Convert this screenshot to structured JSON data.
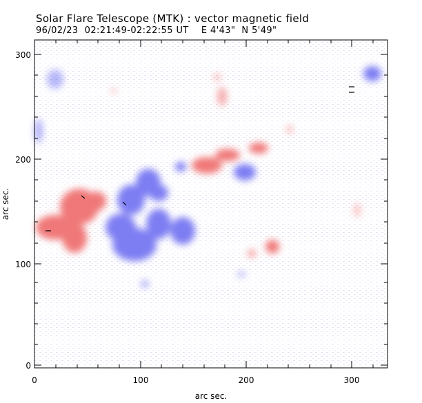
{
  "header": {
    "title": "Solar Flare Telescope (MTK) : vector magnetic field",
    "subtitle": "96/02/23  02:21:49-02:22:55 UT    E 4'43\"  N 5'49\""
  },
  "axes": {
    "xlabel": "arc sec.",
    "ylabel": "arc sec.",
    "x_ticks": [
      "0",
      "100",
      "200",
      "300"
    ],
    "y_ticks": [
      "0",
      "100",
      "200",
      "300"
    ]
  },
  "colors": {
    "positive_polarity": "#f07070",
    "negative_polarity": "#7070f0",
    "frame": "#000000"
  }
}
